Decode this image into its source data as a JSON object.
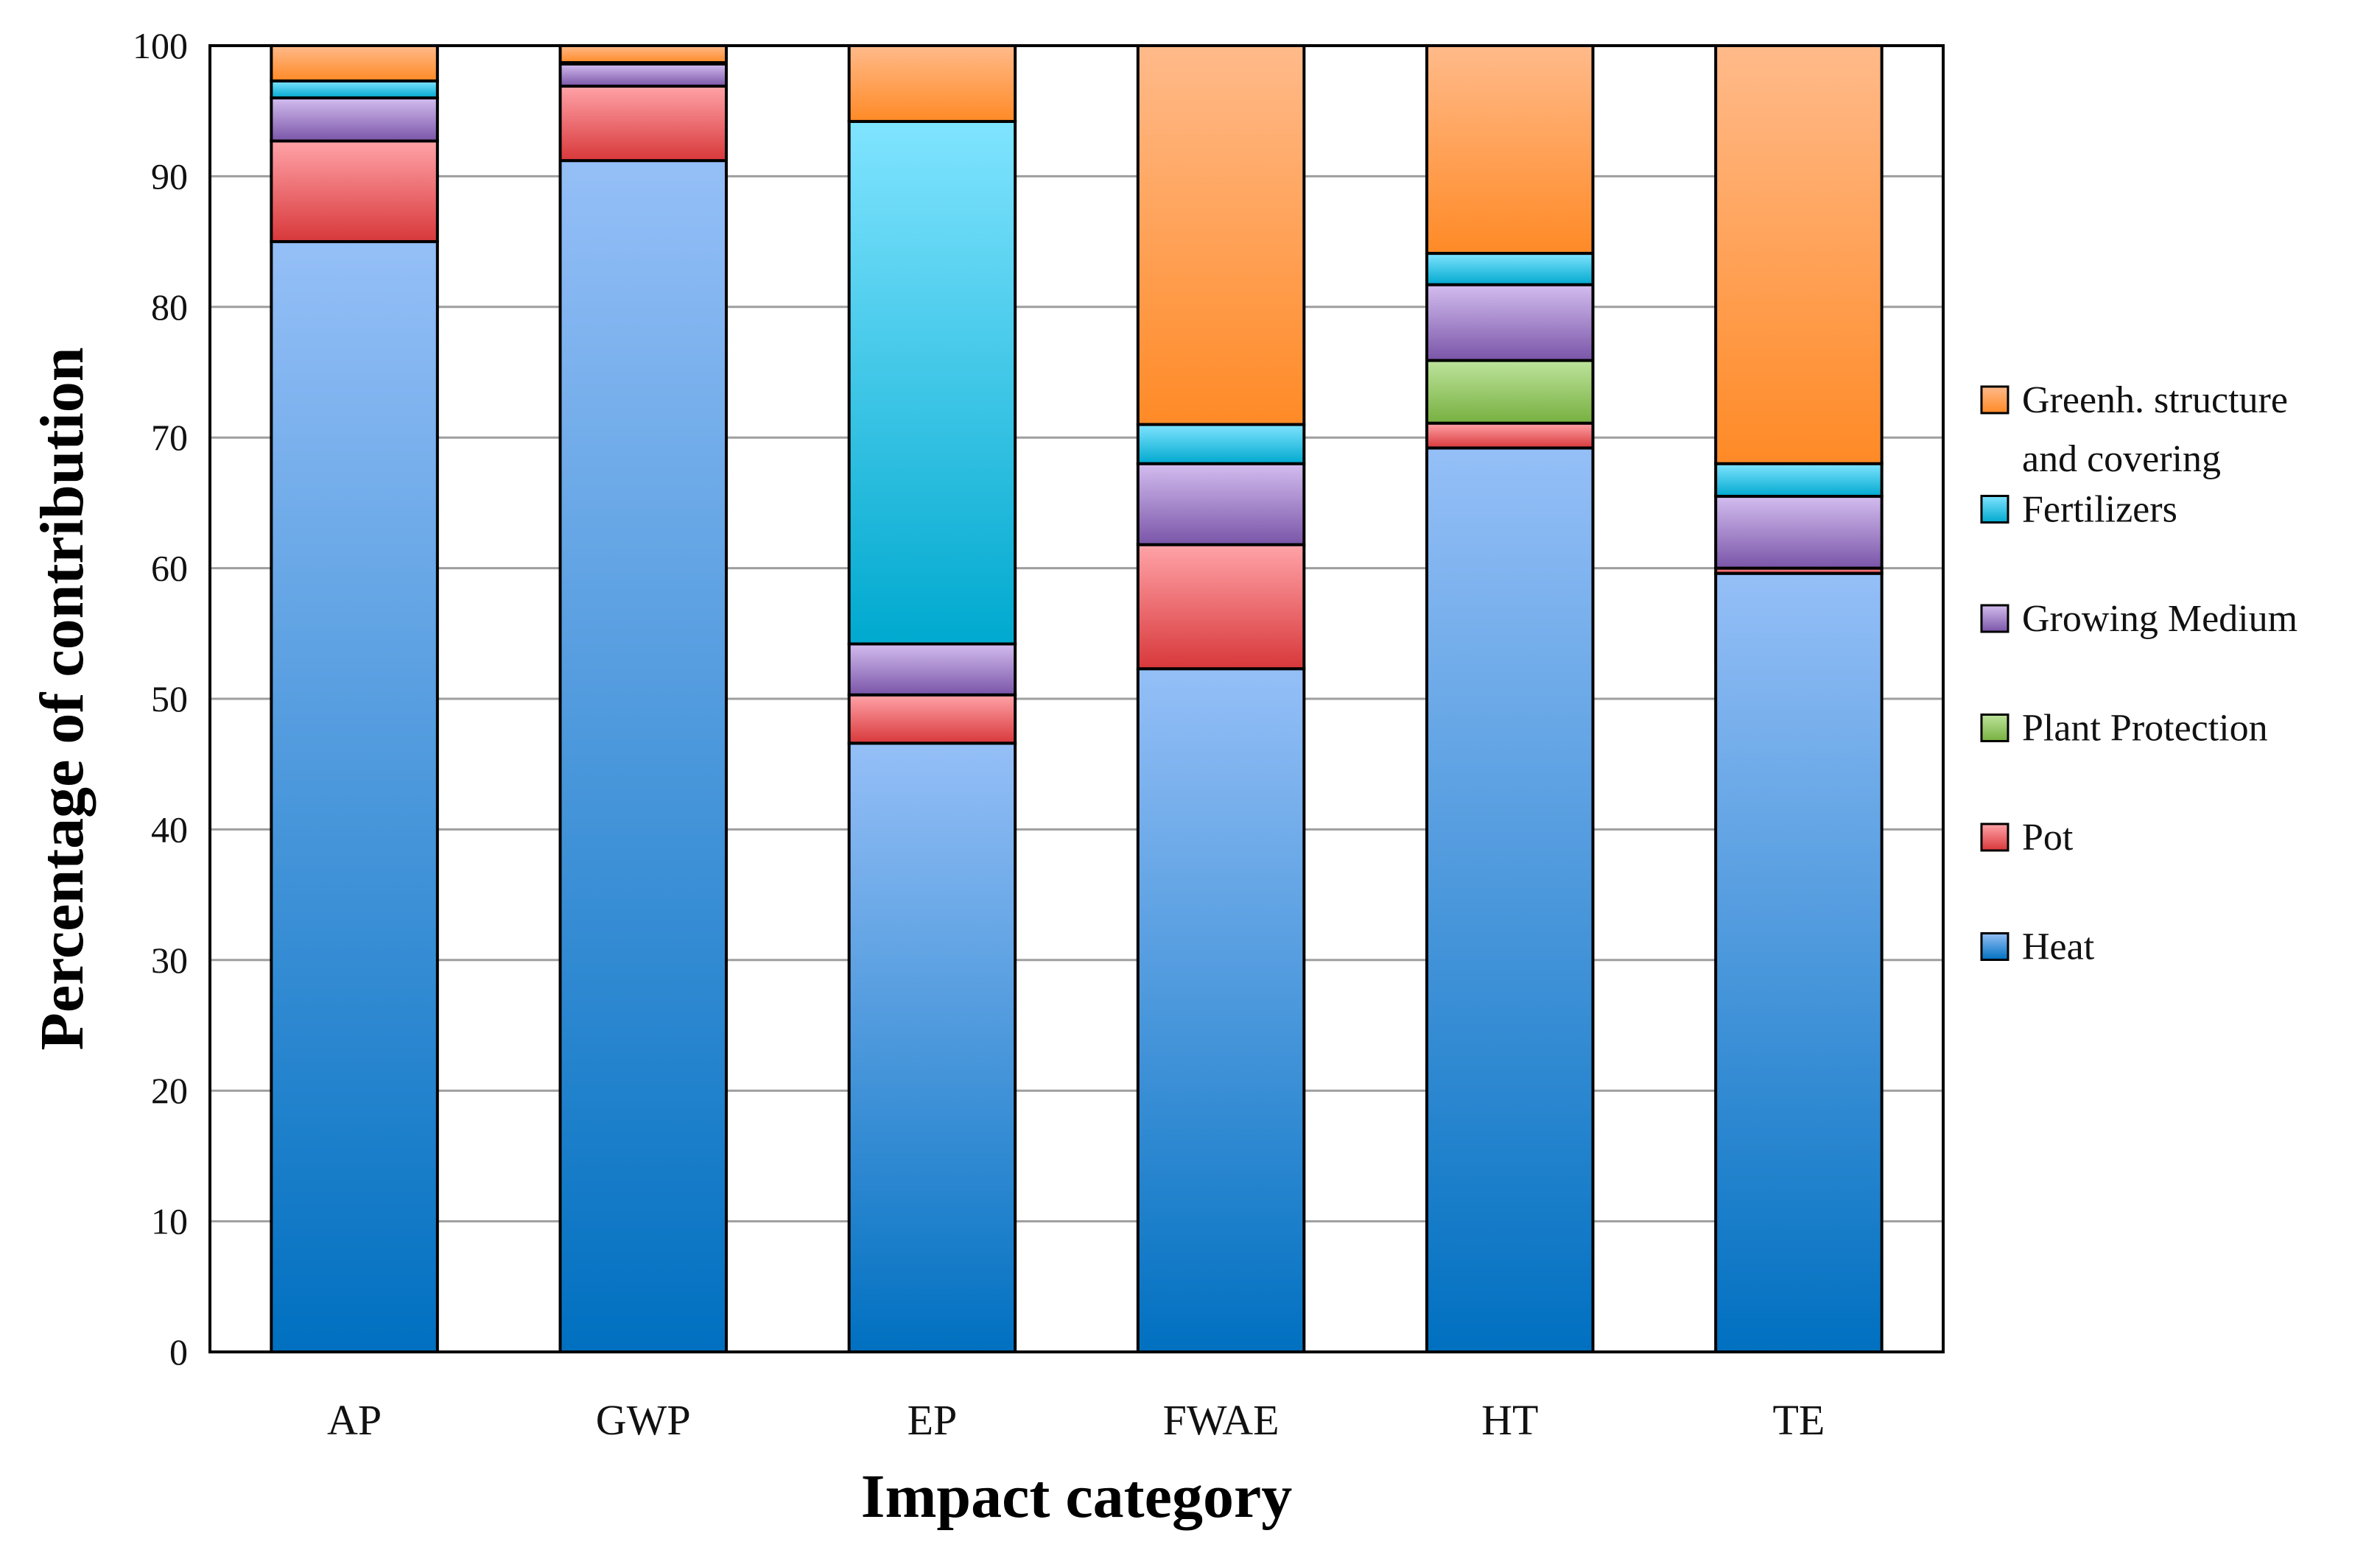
{
  "chart_data": {
    "type": "bar",
    "stacked": true,
    "title": "",
    "xlabel": "Impact category",
    "ylabel": "Percentage of contribution",
    "ylim": [
      0,
      100
    ],
    "ytick_step": 10,
    "yticks": [
      "0",
      "10",
      "20",
      "30",
      "40",
      "50",
      "60",
      "70",
      "80",
      "90",
      "100"
    ],
    "grid": true,
    "legend_position": "right",
    "categories": [
      "AP",
      "GWP",
      "EP",
      "FWAE",
      "HT",
      "TE"
    ],
    "series": [
      {
        "name": "Heat",
        "color_dark": "#0070c0",
        "color_light": "#95bff7",
        "values": [
          85.0,
          91.2,
          46.6,
          52.3,
          69.2,
          59.6
        ]
      },
      {
        "name": "Pot",
        "color_dark": "#d8383a",
        "color_light": "#ffa3a8",
        "values": [
          7.7,
          5.7,
          3.7,
          9.5,
          1.9,
          0.4
        ]
      },
      {
        "name": "Plant Protection",
        "color_dark": "#77b040",
        "color_light": "#bde39b",
        "values": [
          0.0,
          0.0,
          0.0,
          0.0,
          4.8,
          0.0
        ]
      },
      {
        "name": "Growing Medium",
        "color_dark": "#7a55a8",
        "color_light": "#d3bdef",
        "values": [
          3.3,
          1.7,
          3.9,
          6.2,
          5.8,
          5.5
        ]
      },
      {
        "name": "Fertilizers",
        "color_dark": "#00a9cf",
        "color_light": "#80e4ff",
        "values": [
          1.3,
          0.1,
          40.0,
          3.0,
          2.4,
          2.5
        ]
      },
      {
        "name": "Greenh. structure and covering",
        "color_dark": "#ff8a26",
        "color_light": "#ffba8a",
        "values": [
          2.7,
          1.3,
          5.8,
          29.0,
          15.9,
          32.0
        ]
      }
    ],
    "legend_order": [
      "Greenh. structure and covering",
      "Fertilizers",
      "Growing Medium",
      "Plant Protection",
      "Pot",
      "Heat"
    ],
    "legend_lines": {
      "Greenh. structure and covering": [
        "Greenh. structure",
        "and covering"
      ]
    }
  }
}
